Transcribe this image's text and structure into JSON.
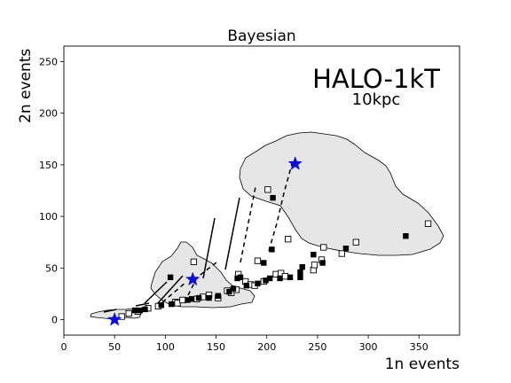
{
  "chart_data": {
    "type": "scatter",
    "title": "Bayesian",
    "xlabel": "1n events",
    "ylabel": "2n events",
    "xlim": [
      0,
      390
    ],
    "ylim": [
      -15,
      265
    ],
    "xticks": [
      0,
      50,
      100,
      150,
      200,
      250,
      300,
      350
    ],
    "yticks": [
      0,
      50,
      100,
      150,
      200,
      250
    ],
    "annotations": {
      "detector": "HALO-1kT",
      "distance": "10kpc"
    },
    "grid": false,
    "filled_squares": [
      [
        70,
        9
      ],
      [
        75,
        9
      ],
      [
        80,
        10
      ],
      [
        96,
        14
      ],
      [
        105,
        41
      ],
      [
        106,
        15
      ],
      [
        122,
        19
      ],
      [
        126,
        20
      ],
      [
        133,
        21
      ],
      [
        143,
        21
      ],
      [
        152,
        23
      ],
      [
        163,
        27
      ],
      [
        167,
        30
      ],
      [
        171,
        40
      ],
      [
        174,
        41
      ],
      [
        180,
        33
      ],
      [
        191,
        35
      ],
      [
        197,
        55
      ],
      [
        199,
        38
      ],
      [
        203,
        40
      ],
      [
        205,
        68
      ],
      [
        206,
        118
      ],
      [
        213,
        40
      ],
      [
        223,
        41
      ],
      [
        233,
        41
      ],
      [
        233,
        46
      ],
      [
        235,
        51
      ],
      [
        246,
        63
      ],
      [
        255,
        55
      ],
      [
        278,
        69
      ],
      [
        337,
        81
      ]
    ],
    "open_squares": [
      [
        57,
        3
      ],
      [
        64,
        6
      ],
      [
        73,
        8
      ],
      [
        83,
        11
      ],
      [
        93,
        13
      ],
      [
        110,
        17
      ],
      [
        112,
        16
      ],
      [
        117,
        19
      ],
      [
        128,
        56
      ],
      [
        131,
        20
      ],
      [
        137,
        22
      ],
      [
        143,
        24
      ],
      [
        152,
        21
      ],
      [
        161,
        28
      ],
      [
        165,
        26
      ],
      [
        170,
        29
      ],
      [
        172,
        44
      ],
      [
        179,
        37
      ],
      [
        184,
        34
      ],
      [
        188,
        33
      ],
      [
        191,
        57
      ],
      [
        197,
        37
      ],
      [
        201,
        126
      ],
      [
        209,
        44
      ],
      [
        214,
        45
      ],
      [
        218,
        42
      ],
      [
        221,
        78
      ],
      [
        246,
        48
      ],
      [
        247,
        53
      ],
      [
        254,
        58
      ],
      [
        256,
        70
      ],
      [
        274,
        64
      ],
      [
        288,
        75
      ],
      [
        359,
        93
      ]
    ],
    "stars": [
      [
        50,
        0
      ],
      [
        127,
        39
      ],
      [
        228,
        151
      ]
    ],
    "colors": {
      "region_fill": "#e6e6e6",
      "region_edge": "#000000",
      "star": "#0d0dd8",
      "marker": "#000000"
    }
  }
}
